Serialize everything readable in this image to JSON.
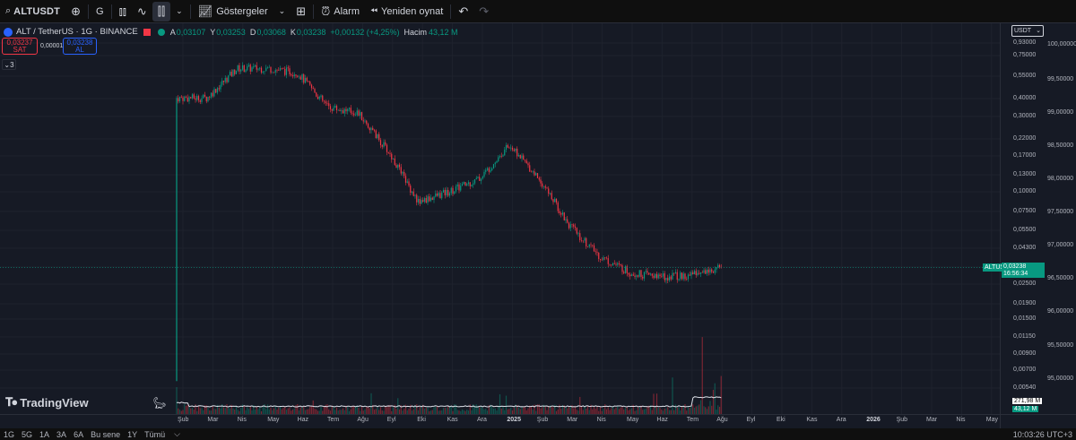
{
  "toolbar": {
    "symbol": "ALTUSDT",
    "interval": "G",
    "indicators_label": "Göstergeler",
    "alarm_label": "Alarm",
    "replay_label": "Yeniden oynat"
  },
  "legend": {
    "title": "ALT / TetherUS · 1G · BINANCE",
    "open_key": "A",
    "open": "0,03107",
    "high_key": "Y",
    "high": "0,03253",
    "low_key": "D",
    "low": "0,03068",
    "close_key": "K",
    "close": "0,03238",
    "change": "+0,00132 (+4,25%)",
    "volume_key": "Hacim",
    "volume": "43,12 M"
  },
  "trade": {
    "sell_price": "0,03237",
    "sell_label": "SAT",
    "spread": "0,00001",
    "buy_price": "0,03238",
    "buy_label": "AL",
    "collapse_count": "3"
  },
  "brand": "TradingView",
  "currency": "USDT",
  "price_axis": [
    "0,93000",
    "0,75000",
    "0,55000",
    "0,40000",
    "0,30000",
    "0,22000",
    "0,17000",
    "0,13000",
    "0,10000",
    "0,07500",
    "0,05500",
    "0,04300",
    "0,03238",
    "0,02500",
    "0,01900",
    "0,01500",
    "0,01150",
    "0,00900",
    "0,00700",
    "0,00540"
  ],
  "secondary_axis": [
    "100,00000",
    "99,50000",
    "99,00000",
    "98,50000",
    "98,00000",
    "97,50000",
    "97,00000",
    "96,50000",
    "96,00000",
    "95,50000",
    "95,00000"
  ],
  "current_price": {
    "symbol": "ALTUSDT",
    "price": "0,03238",
    "countdown": "16:56:34"
  },
  "volume_tags": {
    "ma": "271,98 M",
    "vol": "43,12 M"
  },
  "time_axis": [
    "Şub",
    "Mar",
    "Nis",
    "May",
    "Haz",
    "Tem",
    "Ağu",
    "Eyl",
    "Eki",
    "Kas",
    "Ara",
    "2025",
    "Şub",
    "Mar",
    "Nis",
    "May",
    "Haz",
    "Tem",
    "Ağu",
    "Eyl",
    "Eki",
    "Kas",
    "Ara",
    "2026",
    "Şub",
    "Mar",
    "Nis",
    "May"
  ],
  "bottom": {
    "ranges": [
      "1G",
      "5G",
      "1A",
      "3A",
      "6A",
      "Bu sene",
      "1Y",
      "Tümü"
    ],
    "clock": "10:03:26 UTC+3"
  },
  "colors": {
    "up": "#089981",
    "down": "#f23645",
    "accent": "#2962ff",
    "bg": "#161a25"
  },
  "chart_data": {
    "type": "candlestick",
    "symbol": "ALT / TetherUS",
    "scale": "log",
    "x": [
      "Şub",
      "Mar",
      "Nis",
      "May",
      "Haz",
      "Tem",
      "Ağu",
      "Eyl",
      "Eki",
      "Kas",
      "Ara",
      "2025",
      "Şub",
      "Mar",
      "Nis",
      "May",
      "Haz",
      "Tem",
      "Ağu"
    ],
    "close_path": [
      0.4,
      0.4,
      0.62,
      0.62,
      0.58,
      0.35,
      0.32,
      0.18,
      0.085,
      0.1,
      0.12,
      0.2,
      0.12,
      0.06,
      0.038,
      0.03,
      0.028,
      0.029,
      0.032
    ],
    "last": {
      "open": 0.03107,
      "high": 0.03253,
      "low": 0.03068,
      "close": 0.03238
    }
  }
}
